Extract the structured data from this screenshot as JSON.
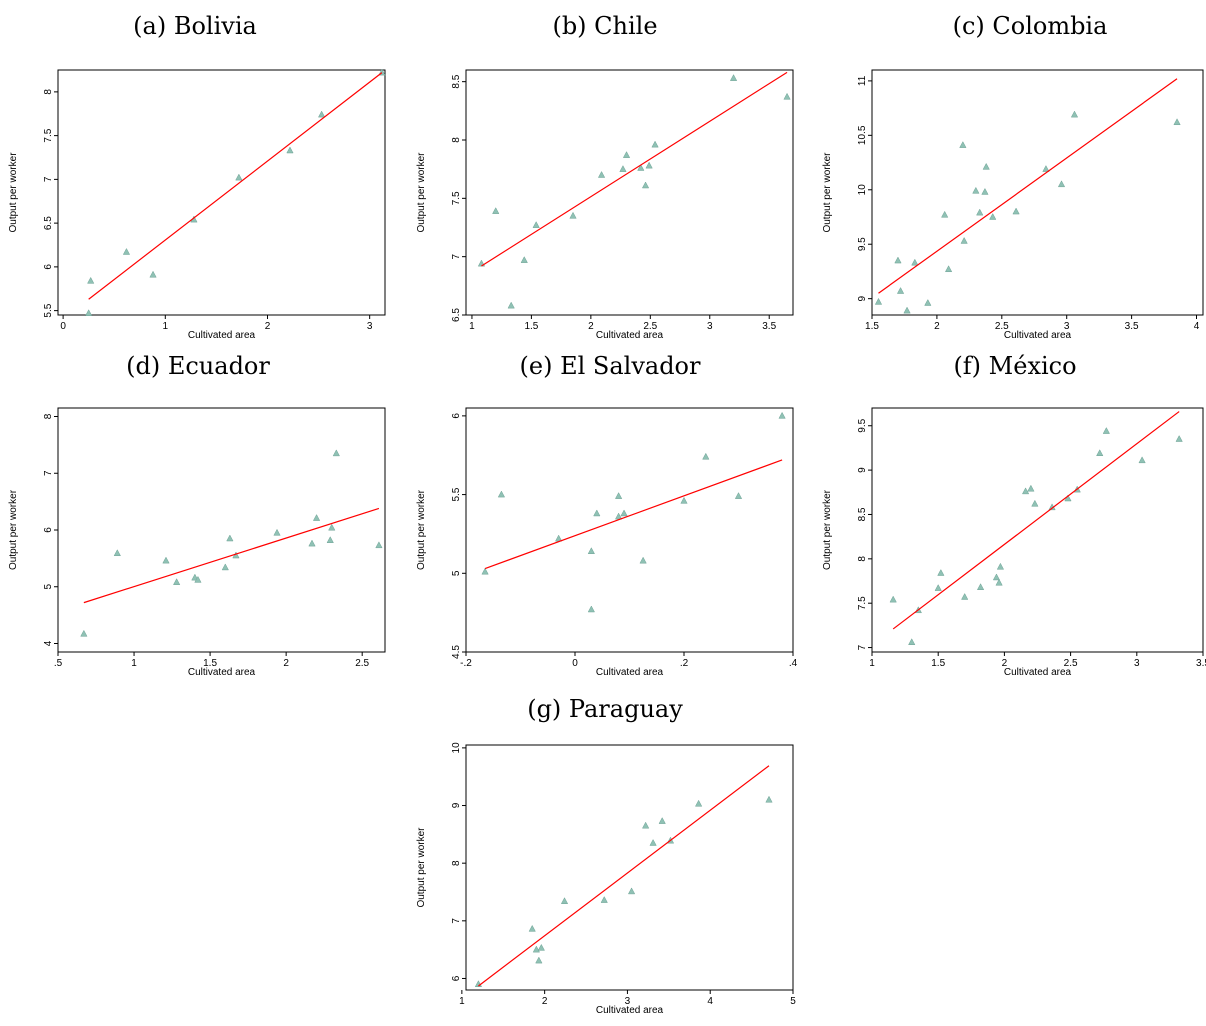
{
  "y_label": "Output per worker",
  "x_label": "Cultivated area",
  "colors": {
    "marker": "#8fc1b4",
    "marker_edge": "#6fa396",
    "fit_line": "#ff0000",
    "axis": "#000000"
  },
  "chart_data": [
    {
      "type": "scatter",
      "caption": "(a) Bolivia",
      "xlabel": "Cultivated area",
      "ylabel": "Output per worker",
      "xlim": [
        -0.05,
        3.15
      ],
      "ylim": [
        5.45,
        8.25
      ],
      "xticks": [
        0,
        1,
        2,
        3
      ],
      "xtick_labels": [
        "0",
        "1",
        "2",
        "3"
      ],
      "yticks": [
        5.5,
        6,
        6.5,
        7,
        7.5,
        8
      ],
      "ytick_labels": [
        "5.5",
        "6",
        "6.5",
        "7",
        "7.5",
        "8"
      ],
      "points": [
        [
          0.25,
          5.47
        ],
        [
          0.27,
          5.84
        ],
        [
          0.62,
          6.17
        ],
        [
          0.88,
          5.91
        ],
        [
          1.28,
          6.54
        ],
        [
          1.72,
          7.02
        ],
        [
          2.22,
          7.33
        ],
        [
          2.53,
          7.74
        ],
        [
          3.12,
          8.22
        ]
      ],
      "fit": [
        [
          0.25,
          5.63
        ],
        [
          3.12,
          8.22
        ]
      ],
      "grid": false,
      "legend": "none"
    },
    {
      "type": "scatter",
      "caption": "(b) Chile",
      "xlabel": "Cultivated area",
      "ylabel": "Output per worker",
      "xlim": [
        0.95,
        3.7
      ],
      "ylim": [
        6.5,
        8.6
      ],
      "xticks": [
        1,
        1.5,
        2,
        2.5,
        3,
        3.5
      ],
      "xtick_labels": [
        "1",
        "1.5",
        "2",
        "2.5",
        "3",
        "3.5"
      ],
      "yticks": [
        6.5,
        7,
        7.5,
        8,
        8.5
      ],
      "ytick_labels": [
        "6.5",
        "7",
        "7.5",
        "8",
        "8.5"
      ],
      "points": [
        [
          1.08,
          6.94
        ],
        [
          1.2,
          7.39
        ],
        [
          1.33,
          6.58
        ],
        [
          1.44,
          6.97
        ],
        [
          1.54,
          7.27
        ],
        [
          1.85,
          7.35
        ],
        [
          2.09,
          7.7
        ],
        [
          2.27,
          7.75
        ],
        [
          2.3,
          7.87
        ],
        [
          2.42,
          7.76
        ],
        [
          2.46,
          7.61
        ],
        [
          2.49,
          7.78
        ],
        [
          2.54,
          7.96
        ],
        [
          3.2,
          8.53
        ],
        [
          3.65,
          8.37
        ]
      ],
      "fit": [
        [
          1.08,
          6.92
        ],
        [
          3.65,
          8.58
        ]
      ],
      "grid": false,
      "legend": "none"
    },
    {
      "type": "scatter",
      "caption": "(c) Colombia",
      "xlabel": "Cultivated area",
      "ylabel": "Output per worker",
      "xlim": [
        1.5,
        4.05
      ],
      "ylim": [
        8.85,
        11.1
      ],
      "xticks": [
        1.5,
        2,
        2.5,
        3,
        3.5,
        4
      ],
      "xtick_labels": [
        "1.5",
        "2",
        "2.5",
        "3",
        "3.5",
        "4"
      ],
      "yticks": [
        9,
        9.5,
        10,
        10.5,
        11
      ],
      "ytick_labels": [
        "9",
        "9.5",
        "10",
        "10.5",
        "11"
      ],
      "points": [
        [
          1.55,
          8.97
        ],
        [
          1.7,
          9.35
        ],
        [
          1.72,
          9.07
        ],
        [
          1.77,
          8.89
        ],
        [
          1.83,
          9.33
        ],
        [
          1.93,
          8.96
        ],
        [
          2.06,
          9.77
        ],
        [
          2.09,
          9.27
        ],
        [
          2.2,
          10.41
        ],
        [
          2.21,
          9.53
        ],
        [
          2.3,
          9.99
        ],
        [
          2.33,
          9.79
        ],
        [
          2.37,
          9.98
        ],
        [
          2.38,
          10.21
        ],
        [
          2.43,
          9.75
        ],
        [
          2.61,
          9.8
        ],
        [
          2.84,
          10.19
        ],
        [
          2.96,
          10.05
        ],
        [
          3.06,
          10.69
        ],
        [
          3.85,
          10.62
        ]
      ],
      "fit": [
        [
          1.55,
          9.05
        ],
        [
          3.85,
          11.02
        ]
      ],
      "grid": false,
      "legend": "none"
    },
    {
      "type": "scatter",
      "caption": "(d) Ecuador",
      "xlabel": "Cultivated area",
      "ylabel": "Output per worker",
      "xlim": [
        0.5,
        2.65
      ],
      "ylim": [
        3.85,
        8.15
      ],
      "xticks": [
        0.5,
        1,
        1.5,
        2,
        2.5
      ],
      "xtick_labels": [
        ".5",
        "1",
        "1.5",
        "2",
        "2.5"
      ],
      "yticks": [
        4,
        5,
        6,
        7,
        8
      ],
      "ytick_labels": [
        "4",
        "5",
        "6",
        "7",
        "8"
      ],
      "points": [
        [
          0.67,
          4.17
        ],
        [
          0.89,
          5.59
        ],
        [
          1.21,
          5.46
        ],
        [
          1.28,
          5.08
        ],
        [
          1.4,
          5.16
        ],
        [
          1.42,
          5.12
        ],
        [
          1.6,
          5.34
        ],
        [
          1.63,
          5.85
        ],
        [
          1.67,
          5.55
        ],
        [
          1.94,
          5.95
        ],
        [
          2.17,
          5.76
        ],
        [
          2.2,
          6.21
        ],
        [
          2.29,
          5.82
        ],
        [
          2.3,
          6.04
        ],
        [
          2.33,
          7.35
        ],
        [
          2.61,
          5.73
        ]
      ],
      "fit": [
        [
          0.67,
          4.72
        ],
        [
          2.61,
          6.38
        ]
      ],
      "grid": false,
      "legend": "none"
    },
    {
      "type": "scatter",
      "caption": "(e) El Salvador",
      "xlabel": "Cultivated area",
      "ylabel": "Output per worker",
      "xlim": [
        -0.2,
        0.4
      ],
      "ylim": [
        4.5,
        6.05
      ],
      "xticks": [
        -0.2,
        0,
        0.2,
        0.4
      ],
      "xtick_labels": [
        "-.2",
        "0",
        ".2",
        ".4"
      ],
      "yticks": [
        4.5,
        5,
        5.5,
        6
      ],
      "ytick_labels": [
        "4.5",
        "5",
        "5.5",
        "6"
      ],
      "points": [
        [
          -0.165,
          5.01
        ],
        [
          -0.135,
          5.5
        ],
        [
          -0.03,
          5.22
        ],
        [
          0.03,
          5.14
        ],
        [
          0.03,
          4.77
        ],
        [
          0.04,
          5.38
        ],
        [
          0.08,
          5.49
        ],
        [
          0.08,
          5.36
        ],
        [
          0.09,
          5.38
        ],
        [
          0.125,
          5.08
        ],
        [
          0.2,
          5.46
        ],
        [
          0.24,
          5.74
        ],
        [
          0.3,
          5.49
        ],
        [
          0.38,
          6.0
        ]
      ],
      "fit": [
        [
          -0.165,
          5.03
        ],
        [
          0.38,
          5.72
        ]
      ],
      "grid": false,
      "legend": "none"
    },
    {
      "type": "scatter",
      "caption": "(f) México",
      "xlabel": "Cultivated area",
      "ylabel": "Output per worker",
      "xlim": [
        1.0,
        3.5
      ],
      "ylim": [
        6.95,
        9.7
      ],
      "xticks": [
        1,
        1.5,
        2,
        2.5,
        3,
        3.5
      ],
      "xtick_labels": [
        "1",
        "1.5",
        "2",
        "2.5",
        "3",
        "3.5"
      ],
      "yticks": [
        7,
        7.5,
        8,
        8.5,
        9,
        9.5
      ],
      "ytick_labels": [
        "7",
        "7.5",
        "8",
        "8.5",
        "9",
        "9.5"
      ],
      "points": [
        [
          1.16,
          7.54
        ],
        [
          1.3,
          7.06
        ],
        [
          1.35,
          7.42
        ],
        [
          1.5,
          7.67
        ],
        [
          1.52,
          7.84
        ],
        [
          1.7,
          7.57
        ],
        [
          1.82,
          7.68
        ],
        [
          1.94,
          7.79
        ],
        [
          1.96,
          7.73
        ],
        [
          1.97,
          7.91
        ],
        [
          2.16,
          8.76
        ],
        [
          2.2,
          8.79
        ],
        [
          2.23,
          8.62
        ],
        [
          2.36,
          8.58
        ],
        [
          2.48,
          8.68
        ],
        [
          2.55,
          8.78
        ],
        [
          2.72,
          9.19
        ],
        [
          2.77,
          9.44
        ],
        [
          3.04,
          9.11
        ],
        [
          3.32,
          9.35
        ]
      ],
      "fit": [
        [
          1.16,
          7.21
        ],
        [
          3.32,
          9.66
        ]
      ],
      "grid": false,
      "legend": "none"
    },
    {
      "type": "scatter",
      "caption": "(g) Paraguay",
      "xlabel": "Cultivated area",
      "ylabel": "Output per worker",
      "xlim": [
        1.05,
        5.0
      ],
      "ylim": [
        5.8,
        10.05
      ],
      "xticks": [
        1,
        2,
        3,
        4,
        5
      ],
      "xtick_labels": [
        "1",
        "2",
        "3",
        "4",
        "5"
      ],
      "yticks": [
        6,
        7,
        8,
        9,
        10
      ],
      "ytick_labels": [
        "6",
        "7",
        "8",
        "9",
        "10"
      ],
      "points": [
        [
          1.2,
          5.9
        ],
        [
          1.85,
          6.86
        ],
        [
          1.9,
          6.5
        ],
        [
          1.93,
          6.31
        ],
        [
          1.96,
          6.53
        ],
        [
          2.24,
          7.34
        ],
        [
          2.72,
          7.36
        ],
        [
          3.05,
          7.51
        ],
        [
          3.22,
          8.65
        ],
        [
          3.31,
          8.35
        ],
        [
          3.42,
          8.73
        ],
        [
          3.52,
          8.39
        ],
        [
          3.86,
          9.03
        ],
        [
          4.71,
          9.1
        ]
      ],
      "fit": [
        [
          1.2,
          5.87
        ],
        [
          4.71,
          9.69
        ]
      ],
      "grid": false,
      "legend": "none"
    }
  ]
}
